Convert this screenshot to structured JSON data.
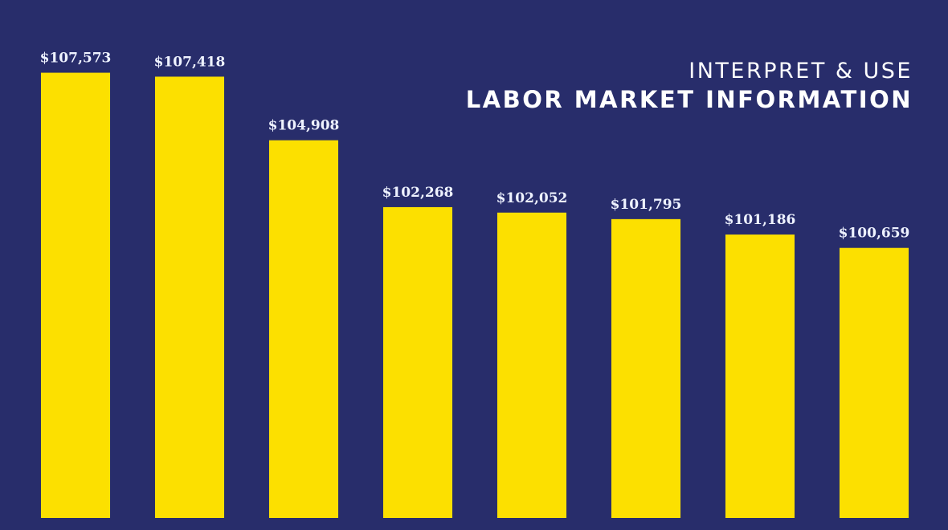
{
  "chart_data": {
    "type": "bar",
    "title": "INTERPRET & USE",
    "subtitle": "LABOR MARKET INFORMATION",
    "categories": [
      null,
      null,
      null,
      null,
      null,
      null,
      null,
      null
    ],
    "values": [
      107573,
      107418,
      104908,
      102268,
      102052,
      101795,
      101186,
      100659
    ],
    "value_labels": [
      "$107,573",
      "$107,418",
      "$104,908",
      "$102,268",
      "$102,052",
      "$101,795",
      "$101,186",
      "$100,659"
    ],
    "color": "#fce000",
    "ylim": [
      90000,
      110000
    ]
  }
}
